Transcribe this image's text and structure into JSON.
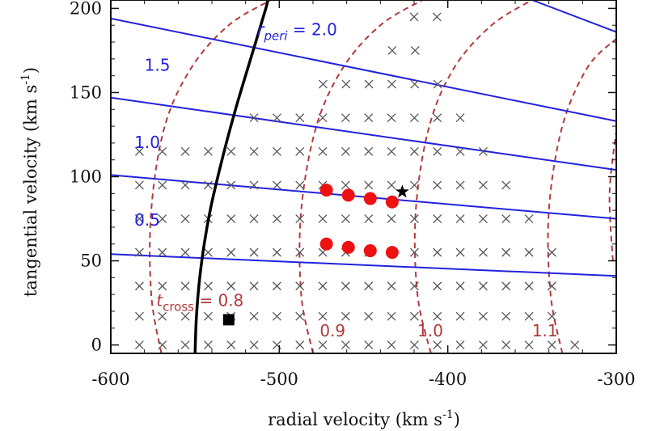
{
  "chart_data": {
    "type": "scatter",
    "xlabel_text": "radial velocity (km s",
    "xlabel_sup": "-1",
    "xlabel_close": ")",
    "ylabel_text": "tangential velocity (km s",
    "ylabel_sup": "-1",
    "ylabel_close": ")",
    "xlim": [
      -600,
      -300
    ],
    "ylim": [
      -5,
      205
    ],
    "xticks": [
      -600,
      -500,
      -400,
      -300
    ],
    "yticks": [
      0,
      50,
      100,
      150,
      200
    ],
    "xtick_labels": [
      "-600",
      "-500",
      "-400",
      "-300"
    ],
    "ytick_labels": [
      "0",
      "50",
      "100",
      "150",
      "200"
    ],
    "boundary_curve": {
      "color": "#000000",
      "points": [
        [
          -550,
          -5
        ],
        [
          -549,
          20
        ],
        [
          -546,
          50
        ],
        [
          -541,
          80
        ],
        [
          -534,
          110
        ],
        [
          -526,
          140
        ],
        [
          -517,
          170
        ],
        [
          -508,
          200
        ],
        [
          -507,
          205
        ]
      ]
    },
    "rperi_lines": [
      {
        "label": "0.5",
        "points": [
          [
            -600,
            54
          ],
          [
            -300,
            41
          ]
        ]
      },
      {
        "label": "1.0",
        "points": [
          [
            -600,
            101
          ],
          [
            -300,
            75
          ]
        ]
      },
      {
        "label": "1.5",
        "points": [
          [
            -600,
            147
          ],
          [
            -300,
            104
          ]
        ]
      },
      {
        "label": "2.0",
        "points": [
          [
            -600,
            194
          ],
          [
            -300,
            133
          ]
        ]
      },
      {
        "label": "",
        "points": [
          [
            -350,
            205
          ],
          [
            -300,
            186
          ]
        ]
      }
    ],
    "rperi_label_prefix": "r",
    "rperi_label_sub": "peri",
    "rperi_label_suffix": " = 2.0",
    "tcross_curves": [
      {
        "label": "0.8",
        "points": [
          [
            -570,
            -5
          ],
          [
            -576,
            30
          ],
          [
            -576,
            80
          ],
          [
            -568,
            130
          ],
          [
            -552,
            165
          ],
          [
            -530,
            190
          ],
          [
            -505,
            205
          ]
        ]
      },
      {
        "label": "0.9",
        "points": [
          [
            -480,
            -5
          ],
          [
            -487,
            30
          ],
          [
            -487,
            80
          ],
          [
            -478,
            130
          ],
          [
            -462,
            165
          ],
          [
            -440,
            190
          ],
          [
            -415,
            205
          ]
        ]
      },
      {
        "label": "1.0",
        "points": [
          [
            -410,
            -5
          ],
          [
            -418,
            30
          ],
          [
            -419,
            80
          ],
          [
            -411,
            130
          ],
          [
            -396,
            165
          ],
          [
            -374,
            190
          ],
          [
            -350,
            205
          ]
        ]
      },
      {
        "label": "1.1",
        "points": [
          [
            -332,
            -5
          ],
          [
            -339,
            30
          ],
          [
            -340,
            80
          ],
          [
            -332,
            130
          ],
          [
            -317,
            165
          ],
          [
            -300,
            182
          ]
        ]
      },
      {
        "label": "",
        "points": [
          [
            -302,
            50
          ],
          [
            -304,
            90
          ],
          [
            -300,
            127
          ]
        ]
      }
    ],
    "tcross_label_prefix": "t",
    "tcross_label_sub": "cross",
    "tcross_label_suffix": " = 0.8",
    "grid_crosses": {
      "color": "#555555",
      "rows": [
        {
          "y": 0,
          "x_start": -583,
          "x_end": -313,
          "step": 13.6
        },
        {
          "y": 17,
          "x_start": -583,
          "x_end": -326,
          "step": 13.6
        },
        {
          "y": 35,
          "x_start": -583,
          "x_end": -326,
          "step": 13.6
        },
        {
          "y": 55,
          "x_start": -583,
          "x_end": -326,
          "step": 13.6
        },
        {
          "y": 75,
          "x_start": -583,
          "x_end": -340,
          "step": 13.6
        },
        {
          "y": 95,
          "x_start": -583,
          "x_end": -353,
          "step": 13.6
        },
        {
          "y": 115,
          "x_start": -583,
          "x_end": -367,
          "step": 13.6
        },
        {
          "y": 135,
          "x_start": -515,
          "x_end": -381,
          "step": 13.6
        },
        {
          "y": 155,
          "x_start": -474,
          "x_end": -394,
          "step": 13.6
        },
        {
          "y": 175,
          "x_start": -433,
          "x_end": -408,
          "step": 13.6
        },
        {
          "y": 195,
          "x_start": -420,
          "x_end": -394,
          "step": 13.6
        }
      ]
    },
    "red_points": {
      "color": "#ee1111",
      "x": [
        -472,
        -459,
        -446,
        -433,
        -472,
        -459,
        -446,
        -433
      ],
      "y": [
        92,
        89,
        87,
        85,
        60,
        58,
        56,
        55
      ]
    },
    "star_point": {
      "x": -427,
      "y": 91,
      "color": "#000000"
    },
    "square_point": {
      "x": -530,
      "y": 15,
      "color": "#000000"
    }
  }
}
